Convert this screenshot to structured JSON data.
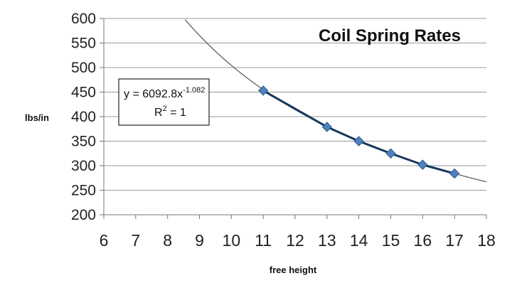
{
  "chart_data": {
    "type": "scatter",
    "title": "Coil Spring Rates",
    "xlabel": "free height",
    "ylabel": "lbs/in",
    "xlim": [
      6,
      18
    ],
    "ylim": [
      200,
      600
    ],
    "xticks": [
      "6",
      "7",
      "8",
      "9",
      "10",
      "11",
      "12",
      "13",
      "14",
      "15",
      "16",
      "17",
      "18"
    ],
    "yticks": [
      "200",
      "250",
      "300",
      "350",
      "400",
      "450",
      "500",
      "550",
      "600"
    ],
    "grid": "horizontal",
    "series": [
      {
        "x": [
          11,
          13,
          14,
          15,
          16,
          17
        ],
        "y": [
          453,
          379,
          350,
          325,
          302,
          284
        ],
        "color": "#4f81bd",
        "line_color": "#17375e",
        "marker": "diamond"
      }
    ],
    "trendline": {
      "type": "power",
      "coefficient": 6092.8,
      "exponent": -1.082,
      "color": "#555555",
      "equation_prefix": "y = 6092.8x",
      "equation_exponent": "-1.082",
      "r2_prefix": "R",
      "r2_sup": "2",
      "r2_suffix": " = 1"
    }
  }
}
